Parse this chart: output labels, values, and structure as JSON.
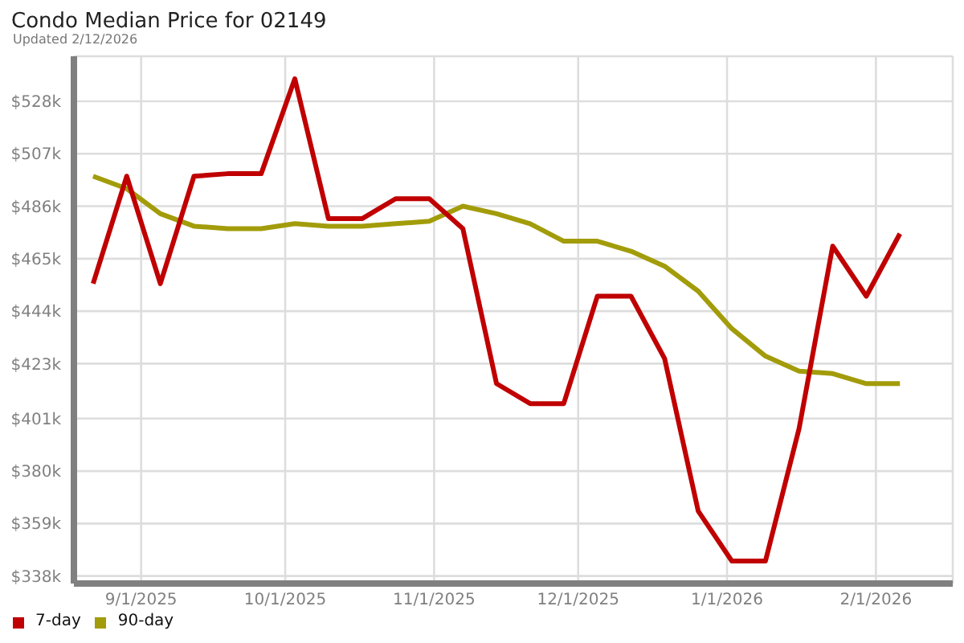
{
  "chart_data": {
    "type": "line",
    "title": "Condo Median Price for 02149",
    "subtitle": "Updated 2/12/2026",
    "x": [
      "2025-08-22",
      "2025-08-29",
      "2025-09-05",
      "2025-09-12",
      "2025-09-19",
      "2025-09-26",
      "2025-10-03",
      "2025-10-10",
      "2025-10-17",
      "2025-10-24",
      "2025-10-31",
      "2025-11-07",
      "2025-11-14",
      "2025-11-21",
      "2025-11-28",
      "2025-12-05",
      "2025-12-12",
      "2025-12-19",
      "2025-12-26",
      "2026-01-02",
      "2026-01-09",
      "2026-01-16",
      "2026-01-23",
      "2026-01-30",
      "2026-02-06"
    ],
    "series": [
      {
        "name": "7-day",
        "color": "#c00000",
        "values": [
          455,
          498,
          455,
          498,
          499,
          499,
          537,
          481,
          481,
          489,
          489,
          477,
          415,
          407,
          407,
          450,
          450,
          425,
          364,
          344,
          344,
          397,
          470,
          450,
          475
        ]
      },
      {
        "name": "90-day",
        "color": "#a29c0a",
        "values": [
          498,
          493,
          483,
          478,
          477,
          477,
          479,
          478,
          478,
          479,
          480,
          486,
          483,
          479,
          472,
          472,
          468,
          462,
          452,
          437,
          426,
          420,
          419,
          415,
          415
        ]
      }
    ],
    "xlim": [
      "2025-08-18",
      "2026-02-17"
    ],
    "xticks": [
      {
        "value": "2025-09-01",
        "label": "9/1/2025"
      },
      {
        "value": "2025-10-01",
        "label": "10/1/2025"
      },
      {
        "value": "2025-11-01",
        "label": "11/1/2025"
      },
      {
        "value": "2025-12-01",
        "label": "12/1/2025"
      },
      {
        "value": "2026-01-01",
        "label": "1/1/2026"
      },
      {
        "value": "2026-02-01",
        "label": "2/1/2026"
      }
    ],
    "ylim": [
      335,
      546
    ],
    "yticks": [
      {
        "value": 338,
        "label": "$338k"
      },
      {
        "value": 359,
        "label": "$359k"
      },
      {
        "value": 380,
        "label": "$380k"
      },
      {
        "value": 401,
        "label": "$401k"
      },
      {
        "value": 423,
        "label": "$423k"
      },
      {
        "value": 444,
        "label": "$444k"
      },
      {
        "value": 465,
        "label": "$465k"
      },
      {
        "value": 486,
        "label": "$486k"
      },
      {
        "value": 507,
        "label": "$507k"
      },
      {
        "value": 528,
        "label": "$528k"
      }
    ],
    "grid": true,
    "legend": "bottom left",
    "marker": "none"
  }
}
